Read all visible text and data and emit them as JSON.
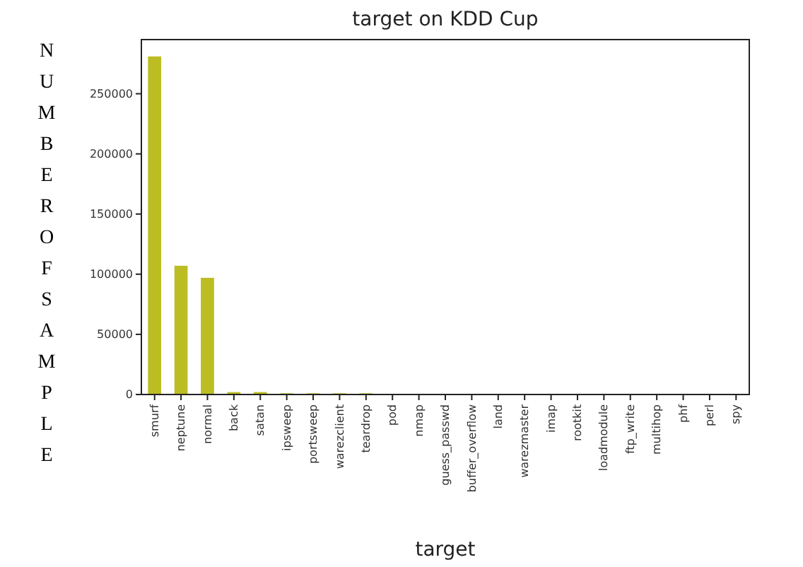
{
  "chart_data": {
    "type": "bar",
    "title": "target on KDD Cup",
    "xlabel": "target",
    "ylabel": "NUMBER OF SAMPLE",
    "categories": [
      "smurf",
      "neptune",
      "normal",
      "back",
      "satan",
      "ipsweep",
      "portsweep",
      "warezclient",
      "teardrop",
      "pod",
      "nmap",
      "guess_passwd",
      "buffer_overflow",
      "land",
      "warezmaster",
      "imap",
      "rootkit",
      "loadmodule",
      "ftp_write",
      "multihop",
      "phf",
      "perl",
      "spy"
    ],
    "values": [
      281000,
      107000,
      97000,
      2000,
      2000,
      1000,
      1000,
      1000,
      1000,
      0,
      0,
      0,
      0,
      0,
      0,
      0,
      0,
      0,
      0,
      0,
      0,
      0,
      0
    ],
    "color": "#bcbd22",
    "ylim": [
      0,
      295000
    ],
    "yticks": [
      0,
      50000,
      100000,
      150000,
      200000,
      250000
    ],
    "grid": false
  }
}
